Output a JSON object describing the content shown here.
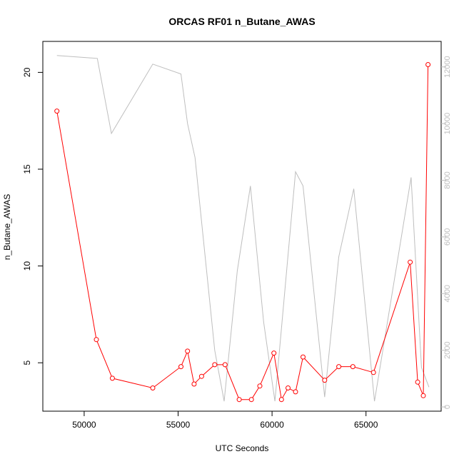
{
  "chart_data": {
    "type": "line",
    "title": "ORCAS RF01 n_Butane_AWAS",
    "xlabel": "UTC Seconds",
    "ylabel": "n_Butane_AWAS",
    "y2label": "",
    "xlim": [
      47800,
      69000
    ],
    "ylim": [
      2.5,
      21.6
    ],
    "y2lim": [
      -150,
      12900
    ],
    "x_ticks": [
      50000,
      55000,
      60000,
      65000
    ],
    "y_ticks": [
      5,
      10,
      15,
      20
    ],
    "y2_ticks": [
      0,
      2000,
      4000,
      6000,
      8000,
      10000,
      12000
    ],
    "series": [
      {
        "name": "",
        "axis": "left",
        "color": "#ff0000",
        "marker": "open-circle",
        "points": [
          [
            48550,
            18.0
          ],
          [
            50650,
            6.2
          ],
          [
            51500,
            4.2
          ],
          [
            53650,
            3.7
          ],
          [
            55150,
            4.8
          ],
          [
            55500,
            5.6
          ],
          [
            55850,
            3.9
          ],
          [
            56250,
            4.3
          ],
          [
            56950,
            4.9
          ],
          [
            57500,
            4.9
          ],
          [
            58250,
            3.1
          ],
          [
            58900,
            3.1
          ],
          [
            59350,
            3.8
          ],
          [
            60100,
            5.5
          ],
          [
            60500,
            3.1
          ],
          [
            60850,
            3.7
          ],
          [
            61250,
            3.5
          ],
          [
            61650,
            5.3
          ],
          [
            62800,
            4.1
          ],
          [
            63550,
            4.8
          ],
          [
            64300,
            4.8
          ],
          [
            65400,
            4.5
          ],
          [
            67350,
            10.2
          ],
          [
            67750,
            4.0
          ],
          [
            68050,
            3.3
          ],
          [
            68300,
            20.4
          ]
        ]
      },
      {
        "name": "",
        "axis": "right",
        "color": "#bebebe",
        "marker": "none",
        "points": [
          [
            48550,
            12400
          ],
          [
            50700,
            12300
          ],
          [
            51450,
            9650
          ],
          [
            53650,
            12100
          ],
          [
            55150,
            11750
          ],
          [
            55500,
            10000
          ],
          [
            55900,
            8800
          ],
          [
            56950,
            2000
          ],
          [
            57450,
            200
          ],
          [
            58150,
            4800
          ],
          [
            58850,
            7800
          ],
          [
            59550,
            3000
          ],
          [
            60150,
            200
          ],
          [
            61250,
            8300
          ],
          [
            61650,
            7800
          ],
          [
            62800,
            350
          ],
          [
            63550,
            5300
          ],
          [
            64350,
            7700
          ],
          [
            65450,
            200
          ],
          [
            67400,
            8100
          ],
          [
            67950,
            1400
          ],
          [
            68350,
            700
          ]
        ]
      }
    ]
  }
}
